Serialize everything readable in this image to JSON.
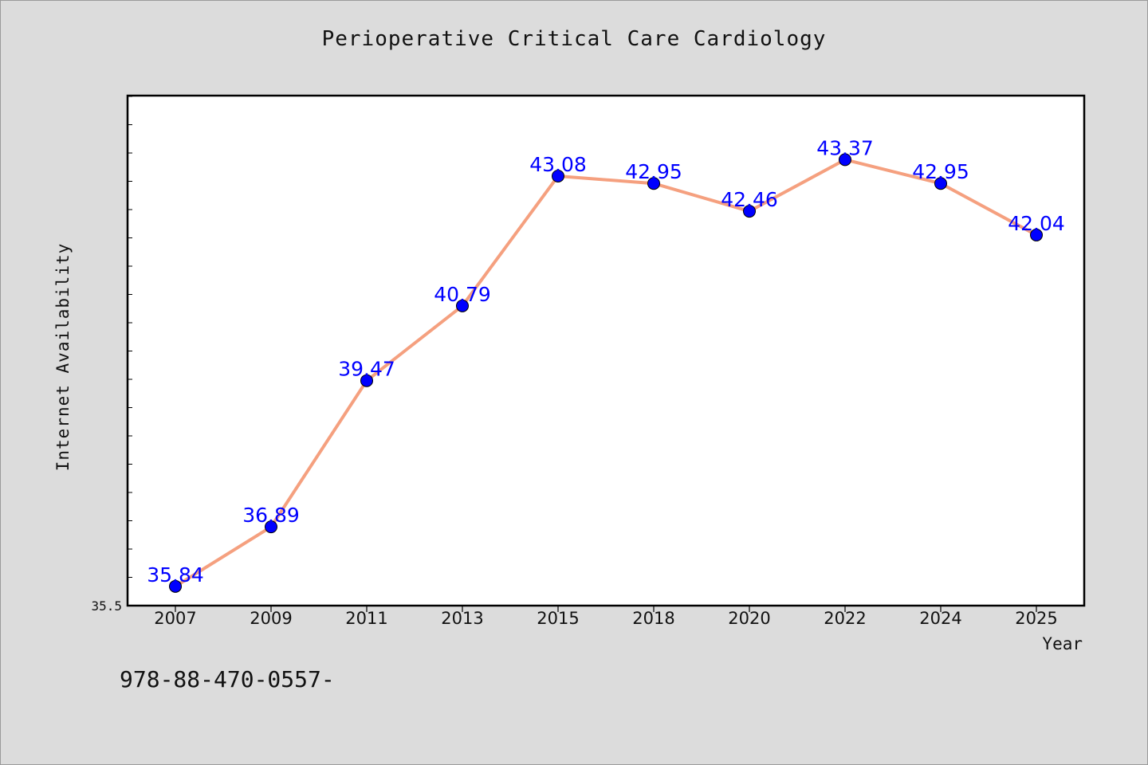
{
  "figure": {
    "footnote": "978-88-470-0557-"
  },
  "colors": {
    "background": "#dcdcdc",
    "plot_background": "#ffffff",
    "line": "#f5a07f",
    "marker": "#0000ff",
    "data_label": "#0000ff"
  },
  "chart_data": {
    "type": "line",
    "title": "Perioperative Critical Care Cardiology",
    "xlabel": "Year",
    "ylabel": "Internet Availability",
    "categories": [
      "2007",
      "2009",
      "2011",
      "2013",
      "2015",
      "2018",
      "2020",
      "2022",
      "2024",
      "2025"
    ],
    "values": [
      35.84,
      36.89,
      39.47,
      40.79,
      43.08,
      42.95,
      42.46,
      43.37,
      42.95,
      42.04
    ],
    "data_labels": [
      "35.84",
      "36.89",
      "39.47",
      "40.79",
      "43.08",
      "42.95",
      "42.46",
      "43.37",
      "42.95",
      "42.04"
    ],
    "ylim": [
      35.5,
      44.5
    ],
    "ytick_labels": [
      "35.5"
    ],
    "grid": false,
    "legend": "none"
  }
}
